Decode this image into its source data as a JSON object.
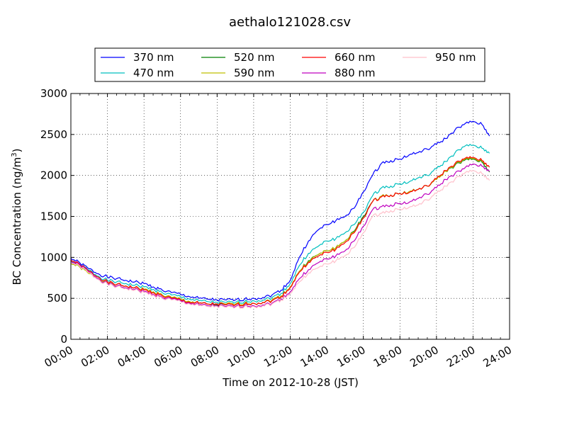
{
  "chart_data": {
    "type": "line",
    "title": "aethalo121028.csv",
    "xlabel": "Time on 2012-10-28 (JST)",
    "ylabel": "BC Concentration (ng/m",
    "ylabel_sup": "3",
    "ylabel_end": ")",
    "xlim": [
      0,
      24
    ],
    "ylim": [
      0,
      3000
    ],
    "x_ticks": [
      0,
      2,
      4,
      6,
      8,
      10,
      12,
      14,
      16,
      18,
      20,
      22,
      24
    ],
    "x_tick_labels": [
      "00:00",
      "02:00",
      "04:00",
      "06:00",
      "08:00",
      "10:00",
      "12:00",
      "14:00",
      "16:00",
      "18:00",
      "20:00",
      "22:00",
      "24:00"
    ],
    "y_ticks": [
      0,
      500,
      1000,
      1500,
      2000,
      2500,
      3000
    ],
    "y_tick_labels": [
      "0",
      "500",
      "1000",
      "1500",
      "2000",
      "2500",
      "3000"
    ],
    "grid": true,
    "legend_position": "top",
    "x": [
      0,
      0.5,
      1,
      1.5,
      2,
      2.5,
      3,
      3.5,
      4,
      4.5,
      5,
      5.5,
      6,
      6.5,
      7,
      7.5,
      8,
      8.5,
      9,
      9.5,
      10,
      10.5,
      11,
      11.5,
      12,
      12.5,
      13,
      13.5,
      14,
      14.5,
      15,
      15.5,
      16,
      16.5,
      17,
      17.5,
      18,
      18.5,
      19,
      19.5,
      20,
      20.5,
      21,
      21.5,
      22,
      22.5,
      22.9
    ],
    "series": [
      {
        "name": "370 nm",
        "color": "#0000ff",
        "values": [
          990,
          930,
          860,
          800,
          760,
          740,
          720,
          700,
          680,
          640,
          600,
          570,
          550,
          520,
          500,
          490,
          480,
          480,
          480,
          490,
          500,
          510,
          540,
          600,
          720,
          1000,
          1200,
          1330,
          1400,
          1450,
          1500,
          1600,
          1800,
          2000,
          2150,
          2180,
          2200,
          2250,
          2280,
          2320,
          2380,
          2450,
          2550,
          2620,
          2660,
          2620,
          2480
        ]
      },
      {
        "name": "470 nm",
        "color": "#00bfbf",
        "values": [
          960,
          910,
          840,
          770,
          720,
          700,
          680,
          660,
          640,
          610,
          570,
          540,
          520,
          490,
          470,
          460,
          450,
          450,
          450,
          460,
          470,
          480,
          510,
          560,
          680,
          900,
          1050,
          1130,
          1200,
          1230,
          1300,
          1400,
          1550,
          1750,
          1850,
          1870,
          1900,
          1920,
          1970,
          2000,
          2080,
          2170,
          2270,
          2350,
          2370,
          2330,
          2270
        ]
      },
      {
        "name": "520 nm",
        "color": "#007f00",
        "values": [
          930,
          880,
          810,
          740,
          690,
          670,
          650,
          630,
          610,
          580,
          540,
          510,
          490,
          460,
          440,
          430,
          420,
          420,
          420,
          430,
          440,
          450,
          480,
          530,
          640,
          830,
          960,
          1030,
          1080,
          1120,
          1200,
          1320,
          1500,
          1680,
          1750,
          1760,
          1780,
          1800,
          1830,
          1870,
          1950,
          2050,
          2120,
          2180,
          2200,
          2160,
          2040
        ]
      },
      {
        "name": "590 nm",
        "color": "#bfbf00",
        "values": [
          930,
          880,
          800,
          740,
          690,
          670,
          650,
          630,
          610,
          580,
          540,
          510,
          490,
          460,
          440,
          430,
          430,
          430,
          430,
          440,
          440,
          450,
          480,
          530,
          640,
          830,
          950,
          1030,
          1080,
          1120,
          1200,
          1310,
          1480,
          1680,
          1750,
          1760,
          1780,
          1800,
          1830,
          1870,
          1950,
          2050,
          2130,
          2190,
          2210,
          2170,
          2100
        ]
      },
      {
        "name": "660 nm",
        "color": "#ff0000",
        "values": [
          970,
          910,
          830,
          760,
          700,
          670,
          650,
          630,
          600,
          570,
          530,
          500,
          480,
          450,
          440,
          430,
          430,
          420,
          420,
          430,
          440,
          450,
          470,
          520,
          630,
          820,
          940,
          1010,
          1060,
          1100,
          1180,
          1300,
          1480,
          1680,
          1740,
          1760,
          1780,
          1790,
          1830,
          1870,
          1960,
          2060,
          2140,
          2200,
          2220,
          2180,
          2100
        ]
      },
      {
        "name": "880 nm",
        "color": "#bf00bf",
        "values": [
          950,
          900,
          820,
          740,
          680,
          650,
          630,
          610,
          580,
          550,
          510,
          490,
          470,
          440,
          420,
          410,
          410,
          400,
          400,
          410,
          410,
          420,
          440,
          490,
          580,
          740,
          850,
          930,
          980,
          1020,
          1080,
          1200,
          1380,
          1580,
          1620,
          1640,
          1660,
          1670,
          1720,
          1770,
          1850,
          1950,
          2020,
          2080,
          2140,
          2110,
          2050
        ]
      },
      {
        "name": "950 nm",
        "color": "#ffc0cb",
        "values": [
          940,
          890,
          810,
          730,
          670,
          640,
          620,
          600,
          570,
          540,
          500,
          480,
          460,
          430,
          410,
          400,
          400,
          390,
          390,
          400,
          400,
          410,
          430,
          480,
          560,
          700,
          810,
          870,
          920,
          960,
          1020,
          1120,
          1300,
          1500,
          1540,
          1570,
          1590,
          1610,
          1640,
          1700,
          1780,
          1870,
          1950,
          2020,
          2060,
          2020,
          1940
        ]
      }
    ]
  }
}
